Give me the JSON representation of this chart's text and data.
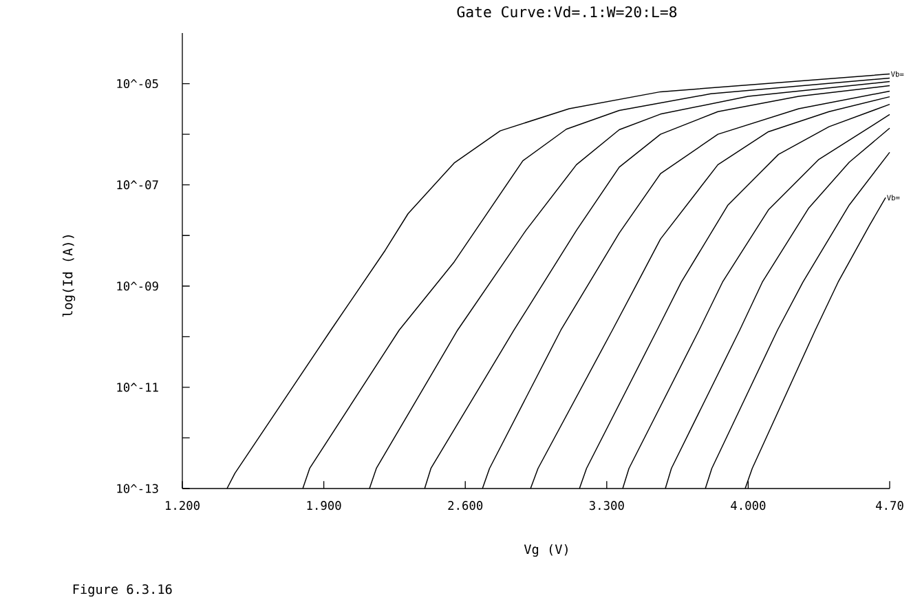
{
  "chart_data": {
    "type": "line",
    "title": "Gate Curve:Vd=.1:W=20:L=8",
    "xlabel": "Vg (V)",
    "ylabel": "log(Id (A))",
    "log": "y",
    "xlim": [
      1.2,
      4.7
    ],
    "ylim": [
      1e-13,
      0.0001
    ],
    "xticks": [
      {
        "value": 1.2,
        "label": "1.200"
      },
      {
        "value": 1.9,
        "label": "1.900"
      },
      {
        "value": 2.6,
        "label": "2.600"
      },
      {
        "value": 3.3,
        "label": "3.300"
      },
      {
        "value": 4.0,
        "label": "4.000"
      },
      {
        "value": 4.7,
        "label": "4.70"
      }
    ],
    "yticks": [
      {
        "value": 1e-13,
        "label": "10^-13"
      },
      {
        "value": 1e-12,
        "label": null
      },
      {
        "value": 1e-11,
        "label": "10^-11"
      },
      {
        "value": 1e-10,
        "label": null
      },
      {
        "value": 1e-09,
        "label": "10^-09"
      },
      {
        "value": 1e-08,
        "label": null
      },
      {
        "value": 1e-07,
        "label": "10^-07"
      },
      {
        "value": 1e-06,
        "label": null
      },
      {
        "value": 1e-05,
        "label": "10^-05"
      }
    ],
    "series": [
      {
        "color": "#000000",
        "x": [
          1.421,
          1.46,
          1.935,
          2.204,
          2.317,
          2.545,
          2.773,
          3.114,
          3.566,
          4.7
        ],
        "values": [
          1e-13,
          2e-13,
          1.35e-10,
          5.1e-09,
          2.7e-08,
          2.7e-07,
          1.17e-06,
          3.2e-06,
          6.9e-06,
          1.55e-05
        ]
      },
      {
        "color": "#000000",
        "x": [
          1.796,
          1.83,
          2.273,
          2.545,
          2.885,
          3.1,
          3.362,
          3.815,
          4.7
        ],
        "values": [
          1e-13,
          2.5e-13,
          1.35e-10,
          3e-09,
          3e-07,
          1.26e-06,
          2.95e-06,
          6.3e-06,
          1.29e-05
        ]
      },
      {
        "color": "#000000",
        "x": [
          2.126,
          2.16,
          2.562,
          2.9,
          3.15,
          3.362,
          3.566,
          4.0,
          4.7
        ],
        "values": [
          1e-13,
          2.5e-13,
          1.35e-10,
          1.26e-08,
          2.5e-07,
          1.23e-06,
          2.5e-06,
          5.6e-06,
          1.1e-05
        ]
      },
      {
        "color": "#000000",
        "x": [
          2.399,
          2.43,
          2.841,
          3.15,
          3.362,
          3.566,
          3.85,
          4.25,
          4.7
        ],
        "values": [
          1e-13,
          2.5e-13,
          1.35e-10,
          1.26e-08,
          2.24e-07,
          1e-06,
          2.8e-06,
          5.6e-06,
          9.1e-06
        ]
      },
      {
        "color": "#000000",
        "x": [
          2.685,
          2.72,
          3.073,
          3.362,
          3.566,
          3.85,
          4.25,
          4.7
        ],
        "values": [
          1e-13,
          2.5e-13,
          1.35e-10,
          1.12e-08,
          1.66e-07,
          1e-06,
          3.2e-06,
          7.1e-06
        ]
      },
      {
        "color": "#000000",
        "x": [
          2.923,
          2.96,
          3.328,
          3.454,
          3.566,
          3.85,
          4.1,
          4.4,
          4.7
        ],
        "values": [
          1e-13,
          2.5e-13,
          1.35e-10,
          1.2e-09,
          8.5e-09,
          2.5e-07,
          1.12e-06,
          2.8e-06,
          5.5e-06
        ]
      },
      {
        "color": "#000000",
        "x": [
          3.165,
          3.2,
          3.549,
          3.669,
          3.9,
          4.15,
          4.4,
          4.7
        ],
        "values": [
          1e-13,
          2.5e-13,
          1.35e-10,
          1.2e-09,
          4e-08,
          4e-07,
          1.41e-06,
          3.9e-06
        ]
      },
      {
        "color": "#000000",
        "x": [
          3.379,
          3.41,
          3.757,
          3.873,
          4.1,
          4.35,
          4.7
        ],
        "values": [
          1e-13,
          2.5e-13,
          1.35e-10,
          1.2e-09,
          3.2e-08,
          3.2e-07,
          2.45e-06
        ]
      },
      {
        "color": "#000000",
        "x": [
          3.59,
          3.62,
          3.958,
          4.07,
          4.3,
          4.5,
          4.7
        ],
        "values": [
          1e-13,
          2.5e-13,
          1.35e-10,
          1.2e-09,
          3.5e-08,
          2.8e-07,
          1.32e-06
        ]
      },
      {
        "color": "#000000",
        "x": [
          3.788,
          3.82,
          4.145,
          4.271,
          4.5,
          4.7
        ],
        "values": [
          1e-13,
          2.5e-13,
          1.35e-10,
          1.2e-09,
          4e-08,
          4.4e-07
        ]
      },
      {
        "color": "#000000",
        "x": [
          3.985,
          4.02,
          4.332,
          4.445,
          4.6,
          4.68
        ],
        "values": [
          1e-13,
          2.5e-13,
          1.35e-10,
          1.2e-09,
          1.58e-08,
          5.6e-08
        ]
      }
    ],
    "annotations": [
      {
        "text": "Vb=",
        "x": 4.7,
        "y": 1.55e-05
      },
      {
        "text": "Vb=",
        "x": 4.68,
        "y": 5.6e-08
      },
      "Figure 6.3.16"
    ]
  }
}
